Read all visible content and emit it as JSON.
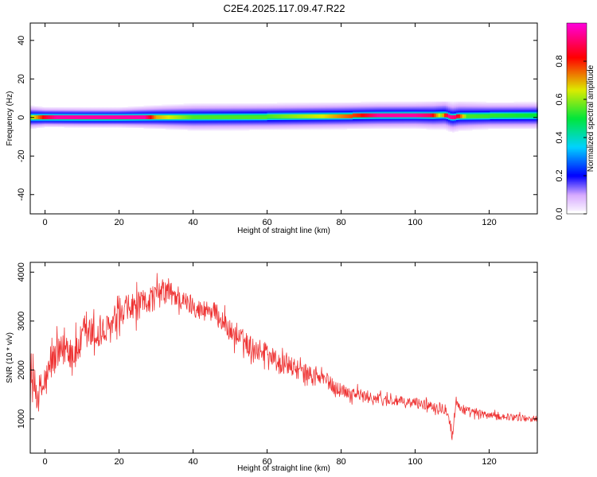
{
  "title": "C2E4.2025.117.09.47.R22",
  "chart_data": [
    {
      "type": "heatmap",
      "xlabel": "Height of straight line (km)",
      "ylabel": "Frequency (Hz)",
      "xlim": [
        -4,
        133
      ],
      "ylim": [
        -50,
        49
      ],
      "xticks": [
        0,
        20,
        40,
        60,
        80,
        100,
        120
      ],
      "yticks": [
        -40,
        -20,
        0,
        20,
        40
      ],
      "ytick_labels": [
        "-40",
        "-20",
        "0",
        "20",
        "40"
      ],
      "colorbar": {
        "label": "Normalized spectral amplitude",
        "range": [
          0,
          1
        ],
        "ticks": [
          0.0,
          0.2,
          0.4,
          0.6,
          0.8
        ],
        "tick_labels": [
          "0.0",
          "0.2",
          "0.4",
          "0.6",
          "0.8"
        ]
      },
      "band": {
        "center_frequency_hz": [
          [
            -4,
            0.2
          ],
          [
            0,
            0.2
          ],
          [
            10,
            0.1
          ],
          [
            20,
            0.1
          ],
          [
            30,
            0.3
          ],
          [
            40,
            0.3
          ],
          [
            60,
            0.5
          ],
          [
            80,
            0.9
          ],
          [
            90,
            1.2
          ],
          [
            100,
            1.3
          ],
          [
            105,
            1.2
          ],
          [
            108,
            1.5
          ],
          [
            110,
            0.2
          ],
          [
            112,
            0.8
          ],
          [
            120,
            1.0
          ],
          [
            133,
            1.1
          ]
        ],
        "peak_amplitude": [
          [
            -4,
            0.6
          ],
          [
            0,
            0.85
          ],
          [
            3,
            0.95
          ],
          [
            10,
            0.95
          ],
          [
            20,
            0.95
          ],
          [
            27,
            0.95
          ],
          [
            30,
            0.7
          ],
          [
            40,
            0.55
          ],
          [
            60,
            0.55
          ],
          [
            75,
            0.65
          ],
          [
            85,
            0.8
          ],
          [
            90,
            0.95
          ],
          [
            100,
            0.95
          ],
          [
            104,
            0.9
          ],
          [
            107,
            0.6
          ],
          [
            109,
            0.95
          ],
          [
            111,
            0.9
          ],
          [
            114,
            0.55
          ],
          [
            133,
            0.5
          ]
        ],
        "halo_halfwidth_hz": [
          [
            -4,
            4
          ],
          [
            0,
            3
          ],
          [
            20,
            3
          ],
          [
            30,
            4
          ],
          [
            40,
            5
          ],
          [
            60,
            5
          ],
          [
            80,
            5
          ],
          [
            100,
            5
          ],
          [
            110,
            6
          ],
          [
            120,
            5
          ],
          [
            133,
            5
          ]
        ]
      }
    },
    {
      "type": "line",
      "xlabel": "Height of straight line (km)",
      "ylabel": "SNR (10 * v/v)",
      "xlim": [
        -4,
        133
      ],
      "ylim": [
        300,
        4200
      ],
      "xticks": [
        0,
        20,
        40,
        60,
        80,
        100,
        120
      ],
      "yticks": [
        1000,
        2000,
        3000,
        4000
      ],
      "series": [
        {
          "color": "#ee3333",
          "x": [
            -4,
            -2,
            0,
            2,
            4,
            6,
            8,
            10,
            12,
            14,
            16,
            18,
            20,
            22,
            24,
            26,
            28,
            30,
            32,
            34,
            36,
            38,
            40,
            42,
            44,
            46,
            48,
            50,
            52,
            54,
            56,
            58,
            60,
            62,
            64,
            66,
            68,
            70,
            72,
            74,
            76,
            78,
            80,
            82,
            84,
            86,
            88,
            90,
            92,
            94,
            96,
            98,
            100,
            102,
            104,
            106,
            108,
            109,
            110,
            111,
            112,
            114,
            116,
            118,
            120,
            122,
            124,
            126,
            128,
            130,
            133
          ],
          "y": [
            1800,
            1500,
            1700,
            2200,
            2300,
            2500,
            2300,
            2600,
            2750,
            2700,
            2750,
            2900,
            3000,
            3200,
            3300,
            3300,
            3450,
            3500,
            3600,
            3550,
            3500,
            3350,
            3350,
            3200,
            3250,
            3150,
            3000,
            2800,
            2650,
            2600,
            2450,
            2400,
            2400,
            2200,
            2100,
            2100,
            2000,
            1950,
            1900,
            1850,
            1800,
            1650,
            1600,
            1550,
            1520,
            1450,
            1450,
            1400,
            1380,
            1380,
            1350,
            1320,
            1330,
            1300,
            1280,
            1250,
            1220,
            1150,
            600,
            1350,
            1250,
            1150,
            1120,
            1100,
            1080,
            1050,
            1050,
            1040,
            1030,
            1010,
            1000
          ],
          "noise_amplitude": [
            [
              -4,
              500
            ],
            [
              0,
              450
            ],
            [
              10,
              450
            ],
            [
              20,
              400
            ],
            [
              30,
              350
            ],
            [
              40,
              280
            ],
            [
              60,
              280
            ],
            [
              80,
              180
            ],
            [
              100,
              130
            ],
            [
              110,
              160
            ],
            [
              120,
              90
            ],
            [
              133,
              80
            ]
          ]
        }
      ]
    }
  ]
}
